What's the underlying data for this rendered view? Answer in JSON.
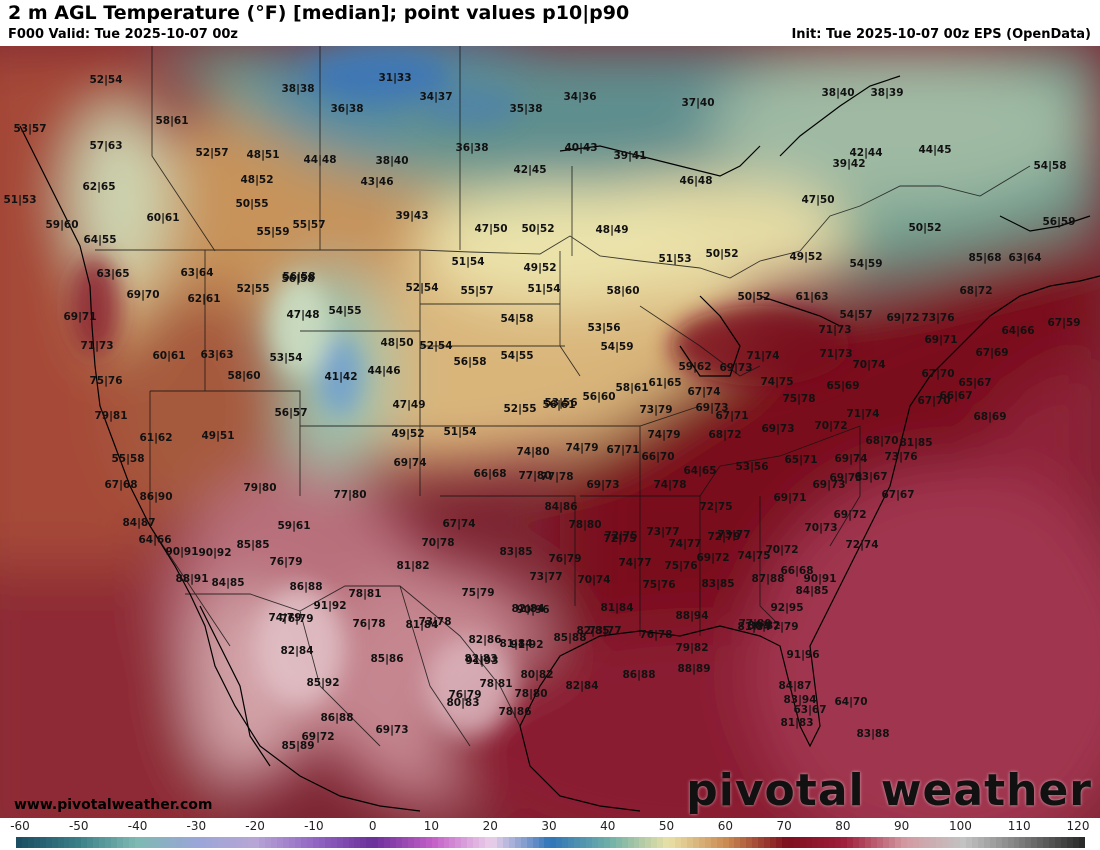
{
  "header": {
    "title": "2 m AGL Temperature (°F) [median]; point values p10|p90",
    "valid": "F000 Valid: Tue 2025-10-07 00z",
    "init": "Init: Tue 2025-10-07 00z EPS (OpenData)"
  },
  "footer": {
    "site": "www.pivotalweather.com",
    "brand": "pivotal weather"
  },
  "colorbar": {
    "labels": [
      "-60",
      "-50",
      "-40",
      "-30",
      "-20",
      "-10",
      "0",
      "10",
      "20",
      "30",
      "40",
      "50",
      "60",
      "70",
      "80",
      "90",
      "100",
      "110",
      "120"
    ],
    "stops": [
      {
        "v": -60,
        "c": "#1c4f63"
      },
      {
        "v": -50,
        "c": "#3a7f88"
      },
      {
        "v": -40,
        "c": "#7fb9b3"
      },
      {
        "v": -30,
        "c": "#9aa6d8"
      },
      {
        "v": -20,
        "c": "#b7a6d6"
      },
      {
        "v": -10,
        "c": "#9266c4"
      },
      {
        "v": 0,
        "c": "#6a2f9a"
      },
      {
        "v": 10,
        "c": "#c45fc8"
      },
      {
        "v": 20,
        "c": "#ead0ea"
      },
      {
        "v": 30,
        "c": "#2f74b8"
      },
      {
        "v": 40,
        "c": "#6fb0a8"
      },
      {
        "v": 50,
        "c": "#e9e1a6"
      },
      {
        "v": 60,
        "c": "#c9874f"
      },
      {
        "v": 70,
        "c": "#7e0e1e"
      },
      {
        "v": 80,
        "c": "#a01f3d"
      },
      {
        "v": 90,
        "c": "#d39aa2"
      },
      {
        "v": 100,
        "c": "#c3c3c3"
      },
      {
        "v": 110,
        "c": "#7a7a7a"
      },
      {
        "v": 120,
        "c": "#2a2a2a"
      }
    ]
  },
  "points": [
    "52|54",
    "53|57",
    "58|61",
    "57|63",
    "38|38",
    "31|33",
    "34|37",
    "36|38",
    "35|38",
    "34|36",
    "37|40",
    "38|40",
    "38|39",
    "52|57",
    "48|51",
    "44|48",
    "38|40",
    "36|38",
    "40|43",
    "39|41",
    "62|65",
    "48|52",
    "43|46",
    "42|45",
    "39|42",
    "42|44",
    "44|45",
    "54|58",
    "51|53",
    "50|55",
    "46|48",
    "47|50",
    "60|61",
    "59|60",
    "39|43",
    "47|50",
    "50|52",
    "48|49",
    "50|52",
    "56|59",
    "55|59",
    "55|57",
    "64|55",
    "56|58",
    "51|54",
    "49|52",
    "51|53",
    "50|52",
    "49|52",
    "54|59",
    "63|64",
    "85|68",
    "63|64",
    "63|65",
    "69|70",
    "62|61",
    "52|55",
    "56|58",
    "52|54",
    "55|57",
    "51|54",
    "58|60",
    "50|52",
    "61|63",
    "68|72",
    "69|71",
    "47|48",
    "54|55",
    "54|58",
    "53|56",
    "69|72",
    "73|76",
    "64|66",
    "67|59",
    "71|73",
    "60|61",
    "63|63",
    "53|54",
    "48|50",
    "52|54",
    "56|58",
    "71|73",
    "69|71",
    "67|69",
    "75|76",
    "58|60",
    "41|42",
    "44|46",
    "54|55",
    "54|59",
    "54|57",
    "71|74",
    "71|73",
    "70|74",
    "67|70",
    "56|57",
    "47|49",
    "52|55",
    "56|61",
    "59|62",
    "69|73",
    "74|75",
    "65|69",
    "65|67",
    "79|81",
    "53|56",
    "56|60",
    "58|61",
    "61|65",
    "67|74",
    "75|78",
    "67|70",
    "66|67",
    "61|62",
    "49|51",
    "49|52",
    "51|54",
    "73|79",
    "69|73",
    "71|74",
    "68|69",
    "67|71",
    "74|79",
    "68|72",
    "69|73",
    "70|72",
    "68|70",
    "81|85",
    "55|58",
    "69|74",
    "74|80",
    "74|79",
    "67|71",
    "66|70",
    "64|65",
    "53|56",
    "65|71",
    "69|74",
    "73|76",
    "69|73",
    "66|68",
    "77|80",
    "77|78",
    "69|73",
    "74|78",
    "69|73",
    "63|67",
    "67|67",
    "67|68",
    "86|90",
    "79|80",
    "77|80",
    "84|86",
    "72|75",
    "69|71",
    "69|72",
    "84|87",
    "59|61",
    "67|74",
    "78|80",
    "72|75",
    "73|77",
    "70|73",
    "64|66",
    "85|85",
    "70|78",
    "72|75",
    "74|77",
    "72|79",
    "73|77",
    "70|72",
    "72|74",
    "90|91",
    "90|92",
    "76|79",
    "81|82",
    "83|85",
    "76|79",
    "74|77",
    "75|76",
    "69|72",
    "74|75",
    "66|68",
    "90|91",
    "88|91",
    "84|85",
    "86|88",
    "78|81",
    "73|77",
    "75|79",
    "70|74",
    "75|76",
    "83|85",
    "87|88",
    "84|85",
    "82|84",
    "81|84",
    "74|79",
    "91|92",
    "81|84",
    "82|85",
    "81|84",
    "80|82",
    "77|79",
    "76|79",
    "76|78",
    "73|78",
    "90|96",
    "82|86",
    "91|92",
    "85|88",
    "73|77",
    "76|78",
    "88|94",
    "77|80",
    "92|95",
    "82|84",
    "85|86",
    "82|83",
    "81|84",
    "79|82",
    "91|96",
    "91|93",
    "85|92",
    "78|81",
    "80|82",
    "82|84",
    "86|88",
    "88|89",
    "84|87",
    "86|88",
    "76|79",
    "78|80",
    "83|94",
    "63|67",
    "69|73",
    "80|83",
    "78|86",
    "81|83",
    "64|70",
    "83|88",
    "85|89",
    "69|72"
  ]
}
